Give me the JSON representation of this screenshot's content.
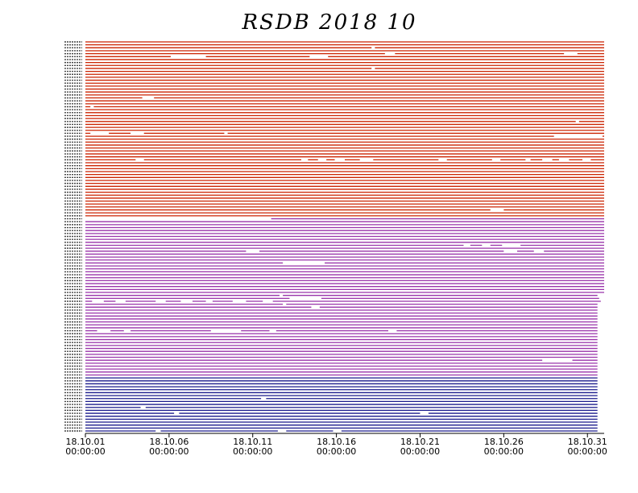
{
  "chart_data": {
    "type": "timeline",
    "title": "RSDB 2018 10",
    "xlim": [
      0,
      31
    ],
    "xticks": [
      {
        "value": 0,
        "label": "18.10.01 00:00:00"
      },
      {
        "value": 5,
        "label": "18.10.06 00:00:00"
      },
      {
        "value": 10,
        "label": "18.10.11 00:00:00"
      },
      {
        "value": 15,
        "label": "18.10.16 00:00:00"
      },
      {
        "value": 20,
        "label": "18.10.21 00:00:00"
      },
      {
        "value": 25,
        "label": "18.10.26 00:00:00"
      },
      {
        "value": 30,
        "label": "18.10.31 00:00:00"
      }
    ],
    "series": [
      {
        "color": "#cc2200",
        "rows": [
          [
            [
              0,
              31
            ]
          ],
          [
            [
              0,
              31
            ]
          ],
          [
            [
              0,
              17.1
            ],
            [
              17.3,
              31
            ]
          ],
          [
            [
              0,
              31
            ]
          ],
          [
            [
              0,
              17.9
            ],
            [
              18.5,
              28.6
            ],
            [
              29.4,
              31
            ]
          ],
          [
            [
              0,
              5.1
            ],
            [
              7.2,
              13.4
            ],
            [
              14.5,
              31
            ]
          ],
          [
            [
              0,
              31
            ]
          ],
          [
            [
              0,
              31
            ]
          ],
          [
            [
              0,
              31
            ]
          ],
          [
            [
              0,
              17.1
            ],
            [
              17.3,
              31
            ]
          ],
          [
            [
              0,
              31
            ]
          ],
          [
            [
              0,
              31
            ]
          ],
          [
            [
              0,
              31
            ]
          ],
          [
            [
              0,
              31
            ]
          ],
          [
            [
              0,
              31
            ]
          ],
          [
            [
              0,
              31
            ]
          ],
          [
            [
              0,
              31
            ]
          ],
          [
            [
              0,
              31
            ]
          ],
          [
            [
              0,
              31
            ]
          ],
          [
            [
              0,
              3.4
            ],
            [
              4.1,
              31
            ]
          ],
          [
            [
              0,
              31
            ]
          ],
          [
            [
              0,
              31
            ]
          ],
          [
            [
              0,
              0.3
            ],
            [
              0.5,
              31
            ]
          ],
          [
            [
              0,
              31
            ]
          ],
          [
            [
              0,
              31
            ]
          ],
          [
            [
              0,
              31
            ]
          ],
          [
            [
              0,
              31
            ]
          ],
          [
            [
              0,
              29.3
            ],
            [
              29.5,
              31
            ]
          ],
          [
            [
              0,
              31
            ]
          ],
          [
            [
              0,
              31
            ]
          ],
          [
            [
              0,
              31
            ]
          ],
          [
            [
              0,
              0.3
            ],
            [
              1.4,
              2.7
            ],
            [
              3.5,
              8.3
            ],
            [
              8.5,
              31
            ]
          ],
          [
            [
              0,
              28
            ],
            [
              30.9,
              31
            ]
          ],
          [
            [
              0,
              31
            ]
          ],
          [
            [
              0,
              31
            ]
          ],
          [
            [
              0,
              31
            ]
          ],
          [
            [
              0,
              31
            ]
          ],
          [
            [
              0,
              31
            ]
          ],
          [
            [
              0,
              31
            ]
          ],
          [
            [
              0,
              31
            ]
          ],
          [
            [
              0,
              3
            ],
            [
              3.5,
              12.9
            ],
            [
              13.3,
              13.9
            ],
            [
              14.4,
              14.9
            ],
            [
              15.5,
              16.4
            ],
            [
              17.2,
              21.1
            ],
            [
              21.6,
              24.3
            ],
            [
              24.8,
              26.3
            ],
            [
              26.6,
              27.3
            ],
            [
              27.9,
              28.3
            ],
            [
              28.9,
              29.7
            ],
            [
              30.2,
              31
            ]
          ],
          [
            [
              0,
              31
            ]
          ],
          [
            [
              0,
              31
            ]
          ],
          [
            [
              0,
              31
            ]
          ],
          [
            [
              0,
              31
            ]
          ],
          [
            [
              0,
              31
            ]
          ],
          [
            [
              0,
              31
            ]
          ],
          [
            [
              0,
              31
            ]
          ],
          [
            [
              0,
              31
            ]
          ],
          [
            [
              0,
              31
            ]
          ],
          [
            [
              0,
              31
            ]
          ],
          [
            [
              0,
              31
            ]
          ],
          [
            [
              0,
              31
            ]
          ],
          [
            [
              0,
              31
            ]
          ],
          [
            [
              0,
              31
            ]
          ],
          [
            [
              0,
              31
            ]
          ],
          [
            [
              0,
              31
            ]
          ],
          [
            [
              0,
              24.2
            ],
            [
              25,
              31
            ]
          ],
          [
            [
              0,
              31
            ]
          ],
          [
            [
              0,
              31
            ]
          ]
        ]
      },
      {
        "color": "#9933aa",
        "rows": [
          [
            [
              11.1,
              31
            ]
          ],
          [
            [
              0,
              31
            ]
          ],
          [
            [
              0,
              31
            ]
          ],
          [
            [
              0,
              31
            ]
          ],
          [
            [
              0,
              31
            ]
          ],
          [
            [
              0,
              31
            ]
          ],
          [
            [
              0,
              31
            ]
          ],
          [
            [
              0,
              31
            ]
          ],
          [
            [
              0,
              31
            ]
          ],
          [
            [
              0,
              22.6
            ],
            [
              23,
              23.7
            ],
            [
              24.2,
              24.9
            ],
            [
              26,
              31
            ]
          ],
          [
            [
              0,
              31
            ]
          ],
          [
            [
              0,
              9.6
            ],
            [
              10.4,
              25
            ],
            [
              25.8,
              26.8
            ],
            [
              27.4,
              31
            ]
          ],
          [
            [
              0,
              31
            ]
          ],
          [
            [
              0,
              31
            ]
          ],
          [
            [
              0,
              31
            ]
          ],
          [
            [
              0,
              11.8
            ],
            [
              14.3,
              31
            ]
          ],
          [
            [
              0,
              31
            ]
          ],
          [
            [
              0,
              31
            ]
          ],
          [
            [
              0,
              31
            ]
          ],
          [
            [
              0,
              31
            ]
          ],
          [
            [
              0,
              31
            ]
          ],
          [
            [
              0,
              31
            ]
          ],
          [
            [
              0,
              31
            ]
          ],
          [
            [
              0,
              31
            ]
          ],
          [
            [
              0,
              31
            ]
          ],
          [
            [
              0,
              31
            ]
          ],
          [
            [
              0,
              11.6
            ],
            [
              11.8,
              30.6
            ]
          ],
          [
            [
              0,
              12.2
            ],
            [
              14.1,
              30.7
            ]
          ],
          [
            [
              0,
              0.4
            ],
            [
              1.1,
              1.8
            ],
            [
              2.4,
              4.2
            ],
            [
              4.8,
              5.7
            ],
            [
              6.4,
              7.2
            ],
            [
              7.6,
              8.8
            ],
            [
              9.6,
              10.6
            ],
            [
              11.2,
              30.8
            ]
          ],
          [
            [
              0,
              11.8
            ],
            [
              12,
              30.6
            ]
          ],
          [
            [
              0,
              13.5
            ],
            [
              14,
              30.6
            ]
          ],
          [
            [
              0,
              30.6
            ]
          ],
          [
            [
              0,
              30.6
            ]
          ],
          [
            [
              0,
              30.6
            ]
          ],
          [
            [
              0,
              30.6
            ]
          ],
          [
            [
              0,
              30.6
            ]
          ],
          [
            [
              0,
              30.6
            ]
          ],
          [
            [
              0,
              30.6
            ]
          ],
          [
            [
              0,
              0.7
            ],
            [
              1.5,
              2.3
            ],
            [
              2.7,
              7.5
            ],
            [
              9.3,
              11
            ],
            [
              11.4,
              18.1
            ],
            [
              18.6,
              30.6
            ]
          ],
          [
            [
              0,
              30.6
            ]
          ],
          [
            [
              0,
              30.6
            ]
          ],
          [
            [
              0,
              30.6
            ]
          ],
          [
            [
              0,
              30.6
            ]
          ],
          [
            [
              0,
              30.6
            ]
          ],
          [
            [
              0,
              30.6
            ]
          ],
          [
            [
              0,
              30.6
            ]
          ],
          [
            [
              0,
              30.6
            ]
          ],
          [
            [
              0,
              30.6
            ]
          ],
          [
            [
              0,
              27.3
            ],
            [
              29.1,
              30.6
            ]
          ],
          [
            [
              0,
              30.6
            ]
          ],
          [
            [
              0,
              30.6
            ]
          ],
          [
            [
              0,
              30.6
            ]
          ],
          [
            [
              0,
              30.6
            ]
          ],
          [
            [
              0,
              30.6
            ]
          ]
        ]
      },
      {
        "color": "#1a1a8c",
        "rows": [
          [
            [
              0,
              30.6
            ]
          ],
          [
            [
              0,
              30.6
            ]
          ],
          [
            [
              0,
              30.6
            ]
          ],
          [
            [
              0,
              30.6
            ]
          ],
          [
            [
              0,
              30.6
            ]
          ],
          [
            [
              0,
              30.6
            ]
          ],
          [
            [
              0,
              30.6
            ]
          ],
          [
            [
              0,
              10.5
            ],
            [
              10.8,
              30.6
            ]
          ],
          [
            [
              0,
              30.6
            ]
          ],
          [
            [
              0,
              30.6
            ]
          ],
          [
            [
              0,
              3.3
            ],
            [
              3.6,
              30.6
            ]
          ],
          [
            [
              0,
              30.6
            ]
          ],
          [
            [
              0,
              5.3
            ],
            [
              5.6,
              20
            ],
            [
              20.5,
              30.6
            ]
          ],
          [
            [
              0,
              30.6
            ]
          ],
          [
            [
              0,
              30.6
            ]
          ],
          [
            [
              0,
              30.6
            ]
          ],
          [
            [
              0,
              30.6
            ]
          ],
          [
            [
              0,
              30.6
            ]
          ],
          [
            [
              0,
              4.2
            ],
            [
              4.5,
              11.5
            ],
            [
              12,
              14.8
            ],
            [
              15.3,
              30.6
            ]
          ]
        ]
      }
    ]
  }
}
